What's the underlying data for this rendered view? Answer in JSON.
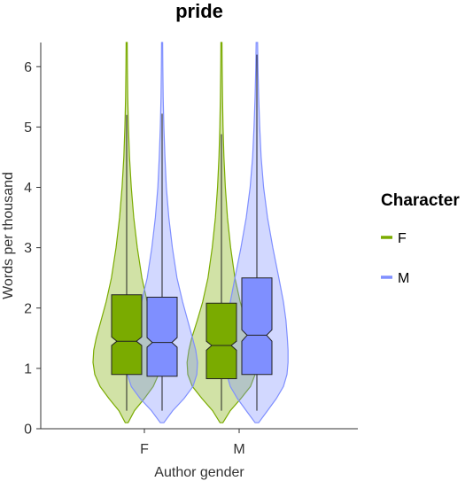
{
  "chart_data": {
    "type": "violin",
    "title": "pride",
    "xlabel": "Author gender",
    "ylabel": "Words per thousand",
    "categories": [
      "F",
      "M"
    ],
    "ylim": [
      0,
      6.4
    ],
    "yticks": [
      0,
      1,
      2,
      3,
      4,
      5,
      6
    ],
    "grid": false,
    "legend": {
      "title": "Character",
      "position": "right",
      "entries": [
        {
          "label": "F",
          "color": "#7aab00"
        },
        {
          "label": "M",
          "color": "#7f8fff"
        }
      ]
    },
    "series": [
      {
        "name": "F",
        "color": "#7aab00",
        "groups": [
          {
            "category": "F",
            "box": {
              "q1": 0.9,
              "median": 1.45,
              "q3": 2.22,
              "whisker_low": 0.3,
              "whisker_high": 5.2,
              "notch_low": 1.38,
              "notch_high": 1.52
            },
            "violin": {
              "min": 0.1,
              "max": 6.4,
              "profile": [
                [
                  0.1,
                  0.04
                ],
                [
                  0.3,
                  0.22
                ],
                [
                  0.5,
                  0.5
                ],
                [
                  0.7,
                  0.75
                ],
                [
                  0.9,
                  0.9
                ],
                [
                  1.1,
                  0.95
                ],
                [
                  1.3,
                  0.93
                ],
                [
                  1.5,
                  0.86
                ],
                [
                  1.8,
                  0.72
                ],
                [
                  2.1,
                  0.58
                ],
                [
                  2.5,
                  0.43
                ],
                [
                  3.0,
                  0.3
                ],
                [
                  3.5,
                  0.2
                ],
                [
                  4.0,
                  0.13
                ],
                [
                  4.5,
                  0.08
                ],
                [
                  5.0,
                  0.05
                ],
                [
                  5.5,
                  0.03
                ],
                [
                  6.0,
                  0.02
                ],
                [
                  6.4,
                  0.015
                ]
              ]
            }
          },
          {
            "category": "M",
            "box": {
              "q1": 0.83,
              "median": 1.38,
              "q3": 2.08,
              "whisker_low": 0.3,
              "whisker_high": 4.88,
              "notch_low": 1.3,
              "notch_high": 1.45
            },
            "violin": {
              "min": 0.1,
              "max": 6.4,
              "profile": [
                [
                  0.1,
                  0.04
                ],
                [
                  0.3,
                  0.25
                ],
                [
                  0.5,
                  0.55
                ],
                [
                  0.7,
                  0.82
                ],
                [
                  0.9,
                  0.95
                ],
                [
                  1.1,
                  0.97
                ],
                [
                  1.3,
                  0.92
                ],
                [
                  1.5,
                  0.84
                ],
                [
                  1.8,
                  0.68
                ],
                [
                  2.1,
                  0.53
                ],
                [
                  2.5,
                  0.38
                ],
                [
                  3.0,
                  0.26
                ],
                [
                  3.5,
                  0.17
                ],
                [
                  4.0,
                  0.11
                ],
                [
                  4.5,
                  0.07
                ],
                [
                  5.0,
                  0.045
                ],
                [
                  5.5,
                  0.03
                ],
                [
                  6.0,
                  0.02
                ],
                [
                  6.4,
                  0.015
                ]
              ]
            }
          }
        ]
      },
      {
        "name": "M",
        "color": "#7f8fff",
        "groups": [
          {
            "category": "F",
            "box": {
              "q1": 0.87,
              "median": 1.43,
              "q3": 2.18,
              "whisker_low": 0.3,
              "whisker_high": 5.22,
              "notch_low": 1.35,
              "notch_high": 1.51
            },
            "violin": {
              "min": 0.1,
              "max": 6.4,
              "profile": [
                [
                  0.1,
                  0.05
                ],
                [
                  0.3,
                  0.3
                ],
                [
                  0.5,
                  0.62
                ],
                [
                  0.7,
                  0.87
                ],
                [
                  0.9,
                  0.98
                ],
                [
                  1.1,
                  1.0
                ],
                [
                  1.3,
                  0.95
                ],
                [
                  1.5,
                  0.86
                ],
                [
                  1.8,
                  0.72
                ],
                [
                  2.1,
                  0.58
                ],
                [
                  2.5,
                  0.42
                ],
                [
                  3.0,
                  0.29
                ],
                [
                  3.5,
                  0.19
                ],
                [
                  4.0,
                  0.12
                ],
                [
                  4.5,
                  0.08
                ],
                [
                  5.0,
                  0.05
                ],
                [
                  5.5,
                  0.03
                ],
                [
                  6.0,
                  0.02
                ],
                [
                  6.4,
                  0.015
                ]
              ]
            }
          },
          {
            "category": "M",
            "box": {
              "q1": 0.9,
              "median": 1.55,
              "q3": 2.5,
              "whisker_low": 0.3,
              "whisker_high": 6.2,
              "notch_low": 1.45,
              "notch_high": 1.64
            },
            "violin": {
              "min": 0.1,
              "max": 6.4,
              "profile": [
                [
                  0.1,
                  0.05
                ],
                [
                  0.3,
                  0.3
                ],
                [
                  0.5,
                  0.55
                ],
                [
                  0.7,
                  0.75
                ],
                [
                  0.9,
                  0.85
                ],
                [
                  1.1,
                  0.88
                ],
                [
                  1.3,
                  0.88
                ],
                [
                  1.5,
                  0.86
                ],
                [
                  1.8,
                  0.82
                ],
                [
                  2.1,
                  0.75
                ],
                [
                  2.5,
                  0.62
                ],
                [
                  3.0,
                  0.45
                ],
                [
                  3.5,
                  0.3
                ],
                [
                  4.0,
                  0.19
                ],
                [
                  4.5,
                  0.12
                ],
                [
                  5.0,
                  0.08
                ],
                [
                  5.5,
                  0.05
                ],
                [
                  6.0,
                  0.03
                ],
                [
                  6.4,
                  0.02
                ]
              ]
            }
          }
        ]
      }
    ]
  }
}
